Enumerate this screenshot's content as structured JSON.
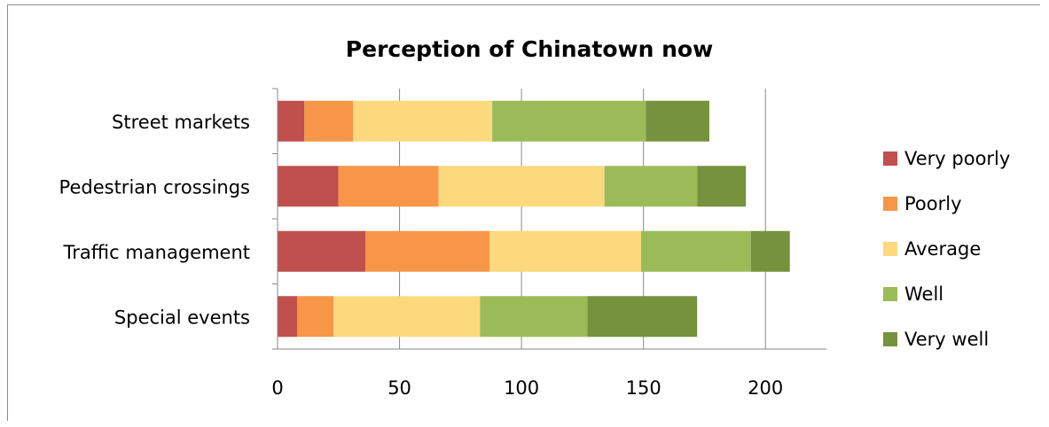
{
  "chart_data": {
    "type": "bar",
    "orientation": "horizontal",
    "stacked": true,
    "title": "Perception of Chinatown now",
    "categories": [
      "Street markets",
      "Pedestrian crossings",
      "Traffic management",
      "Special events"
    ],
    "series": [
      {
        "name": "Very poorly",
        "color": "#c0504d",
        "values": [
          11,
          25,
          36,
          8
        ]
      },
      {
        "name": "Poorly",
        "color": "#f79646",
        "values": [
          20,
          41,
          51,
          15
        ]
      },
      {
        "name": "Average",
        "color": "#fcd97d",
        "values": [
          57,
          68,
          62,
          60
        ]
      },
      {
        "name": "Well",
        "color": "#9bbb59",
        "values": [
          63,
          38,
          45,
          44
        ]
      },
      {
        "name": "Very well",
        "color": "#76923c",
        "values": [
          26,
          20,
          16,
          45
        ]
      }
    ],
    "x_ticks": [
      "0",
      "50",
      "100",
      "150",
      "200"
    ],
    "xlim": [
      0,
      225
    ],
    "grid": true,
    "legend": "right"
  }
}
